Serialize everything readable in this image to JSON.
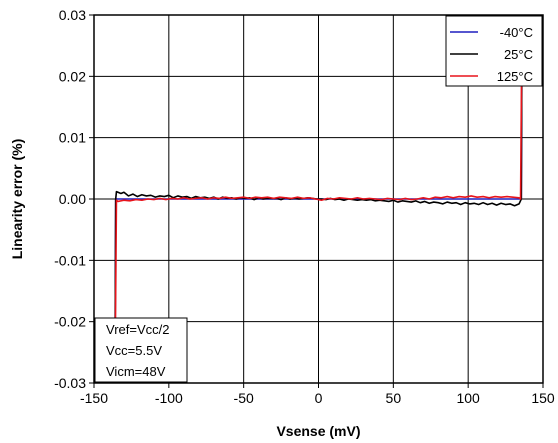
{
  "chart_data": {
    "type": "line",
    "xlabel": "Vsense (mV)",
    "ylabel": "Linearity error (%)",
    "xlim": [
      -150,
      150
    ],
    "ylim": [
      -0.03,
      0.03
    ],
    "x_ticks": [
      -150,
      -100,
      -50,
      0,
      50,
      100,
      150
    ],
    "y_ticks": [
      -0.03,
      -0.02,
      -0.01,
      0.0,
      0.01,
      0.02,
      0.03
    ],
    "x_tick_labels": [
      "-150",
      "-100",
      "-50",
      "0",
      "50",
      "100",
      "150"
    ],
    "y_tick_labels": [
      "-0.03",
      "-0.02",
      "-0.01",
      "0.00",
      "0.01",
      "0.02",
      "0.03"
    ],
    "grid": true,
    "legend_position": "top-right",
    "annotation": [
      "Vref=Vcc/2",
      "Vcc=5.5V",
      "Vicm=48V"
    ],
    "series": [
      {
        "name": "-40°C",
        "color": "#1f1fbf",
        "x": [
          -136,
          -135.5,
          -133,
          -130,
          -125,
          -120,
          -115,
          -110,
          -105,
          -100,
          -95,
          -90,
          -85,
          -80,
          -75,
          -70,
          -65,
          -60,
          -55,
          -50,
          -45,
          -40,
          -35,
          -30,
          -25,
          -20,
          -15,
          -10,
          -5,
          0,
          5,
          10,
          15,
          20,
          25,
          30,
          35,
          40,
          45,
          50,
          55,
          60,
          65,
          70,
          75,
          80,
          85,
          90,
          95,
          100,
          105,
          110,
          115,
          120,
          125,
          130,
          134,
          135.5,
          136
        ],
        "y": [
          -0.03,
          0.0,
          0.0,
          0.0,
          0.0,
          0.0,
          0.0,
          0.0,
          0.0,
          0.0,
          0.0,
          0.0,
          0.0,
          0.0,
          0.0,
          0.0,
          0.0,
          0.0,
          0.0,
          0.0,
          0.0,
          0.0,
          0.0,
          0.0,
          0.0,
          0.0,
          0.0,
          0.0,
          0.0,
          0.0,
          0.0,
          0.0,
          0.0,
          0.0,
          0.0,
          0.0,
          0.0,
          0.0,
          0.0,
          0.0,
          0.0,
          0.0,
          0.0,
          0.0,
          0.0,
          0.0,
          0.0,
          0.0,
          0.0,
          0.0,
          0.0,
          0.0,
          0.0,
          0.0,
          0.0,
          0.0,
          0.0,
          0.0,
          0.03
        ]
      },
      {
        "name": "25°C",
        "color": "#000000",
        "x": [
          -136,
          -135.5,
          -135,
          -132,
          -130,
          -127,
          -124,
          -121,
          -118,
          -115,
          -112,
          -109,
          -106,
          -103,
          -100,
          -97,
          -94,
          -91,
          -88,
          -85,
          -82,
          -79,
          -76,
          -73,
          -70,
          -67,
          -64,
          -61,
          -58,
          -55,
          -52,
          -49,
          -46,
          -43,
          -40,
          -37,
          -34,
          -31,
          -28,
          -25,
          -22,
          -19,
          -16,
          -13,
          -10,
          -7,
          -4,
          -1,
          2,
          5,
          8,
          11,
          14,
          17,
          20,
          23,
          26,
          29,
          32,
          35,
          38,
          41,
          44,
          47,
          50,
          53,
          56,
          59,
          62,
          65,
          68,
          71,
          74,
          77,
          80,
          83,
          86,
          89,
          92,
          95,
          98,
          101,
          104,
          107,
          110,
          113,
          116,
          119,
          122,
          125,
          128,
          131,
          134,
          135.5,
          136
        ],
        "y": [
          -0.03,
          0.0,
          0.0012,
          0.0009,
          0.0011,
          0.0005,
          0.0008,
          0.0004,
          0.0007,
          0.0005,
          0.0006,
          0.0003,
          0.0005,
          0.0004,
          0.0006,
          0.0002,
          0.0005,
          0.0003,
          0.0004,
          0.0001,
          0.0004,
          0.0002,
          0.0003,
          0.0001,
          0.0003,
          0.0,
          0.0003,
          0.0001,
          0.0002,
          0.0,
          0.0002,
          0.0001,
          0.0002,
          -0.0001,
          0.0002,
          0.0,
          0.0001,
          0.0001,
          0.0001,
          -0.0001,
          0.0002,
          0.0,
          0.0001,
          0.0,
          0.0001,
          0.0002,
          0.0001,
          0.0,
          0.0,
          -0.0001,
          0.0001,
          -0.0001,
          0.0,
          -0.0002,
          0.0,
          -0.0001,
          -0.0002,
          -0.0001,
          -0.0002,
          -0.0001,
          -0.0003,
          -0.0002,
          -0.0003,
          -0.0004,
          -0.0002,
          -0.0005,
          -0.0003,
          -0.0004,
          -0.0005,
          -0.0003,
          -0.0006,
          -0.0004,
          -0.0007,
          -0.0005,
          -0.0006,
          -0.0008,
          -0.0005,
          -0.0007,
          -0.0006,
          -0.0009,
          -0.0006,
          -0.0008,
          -0.0007,
          -0.0009,
          -0.0006,
          -0.0009,
          -0.0007,
          -0.001,
          -0.0007,
          -0.0009,
          -0.0008,
          -0.0011,
          -0.0008,
          0.0,
          0.03
        ]
      },
      {
        "name": "125°C",
        "color": "#e8141b",
        "x": [
          -136,
          -135,
          -134,
          -130,
          -126,
          -122,
          -118,
          -114,
          -110,
          -106,
          -102,
          -98,
          -94,
          -90,
          -86,
          -82,
          -78,
          -74,
          -70,
          -66,
          -62,
          -58,
          -54,
          -50,
          -46,
          -42,
          -38,
          -34,
          -30,
          -26,
          -22,
          -18,
          -14,
          -10,
          -6,
          -2,
          2,
          6,
          10,
          14,
          18,
          22,
          26,
          30,
          34,
          38,
          42,
          46,
          50,
          54,
          58,
          62,
          66,
          70,
          74,
          78,
          82,
          86,
          90,
          94,
          98,
          102,
          106,
          110,
          114,
          118,
          122,
          126,
          130,
          134,
          135,
          136
        ],
        "y": [
          -0.03,
          -0.0002,
          -0.0004,
          -0.0002,
          -0.0003,
          -0.0001,
          -0.0002,
          0.0,
          -0.0001,
          0.0001,
          -0.0001,
          0.0001,
          0.0,
          0.0002,
          0.0,
          0.0001,
          0.0002,
          0.0,
          0.0002,
          0.0001,
          0.0003,
          0.0001,
          0.0002,
          0.0003,
          0.0001,
          0.0003,
          0.0002,
          0.0003,
          0.0001,
          0.0003,
          0.0002,
          0.0001,
          0.0003,
          0.0001,
          0.0002,
          0.0,
          -0.0002,
          0.0001,
          0.0,
          0.0002,
          0.0001,
          0.0,
          0.0002,
          0.0,
          0.0001,
          0.0,
          -0.0001,
          0.0001,
          0.0,
          -0.0001,
          0.0001,
          -0.0001,
          0.0,
          0.0002,
          0.0,
          0.0003,
          0.0002,
          0.0004,
          0.0002,
          0.0004,
          0.0003,
          0.0005,
          0.0003,
          0.0004,
          0.0002,
          0.0004,
          0.0003,
          0.0004,
          0.0003,
          0.0002,
          0.0,
          0.03
        ]
      }
    ]
  }
}
